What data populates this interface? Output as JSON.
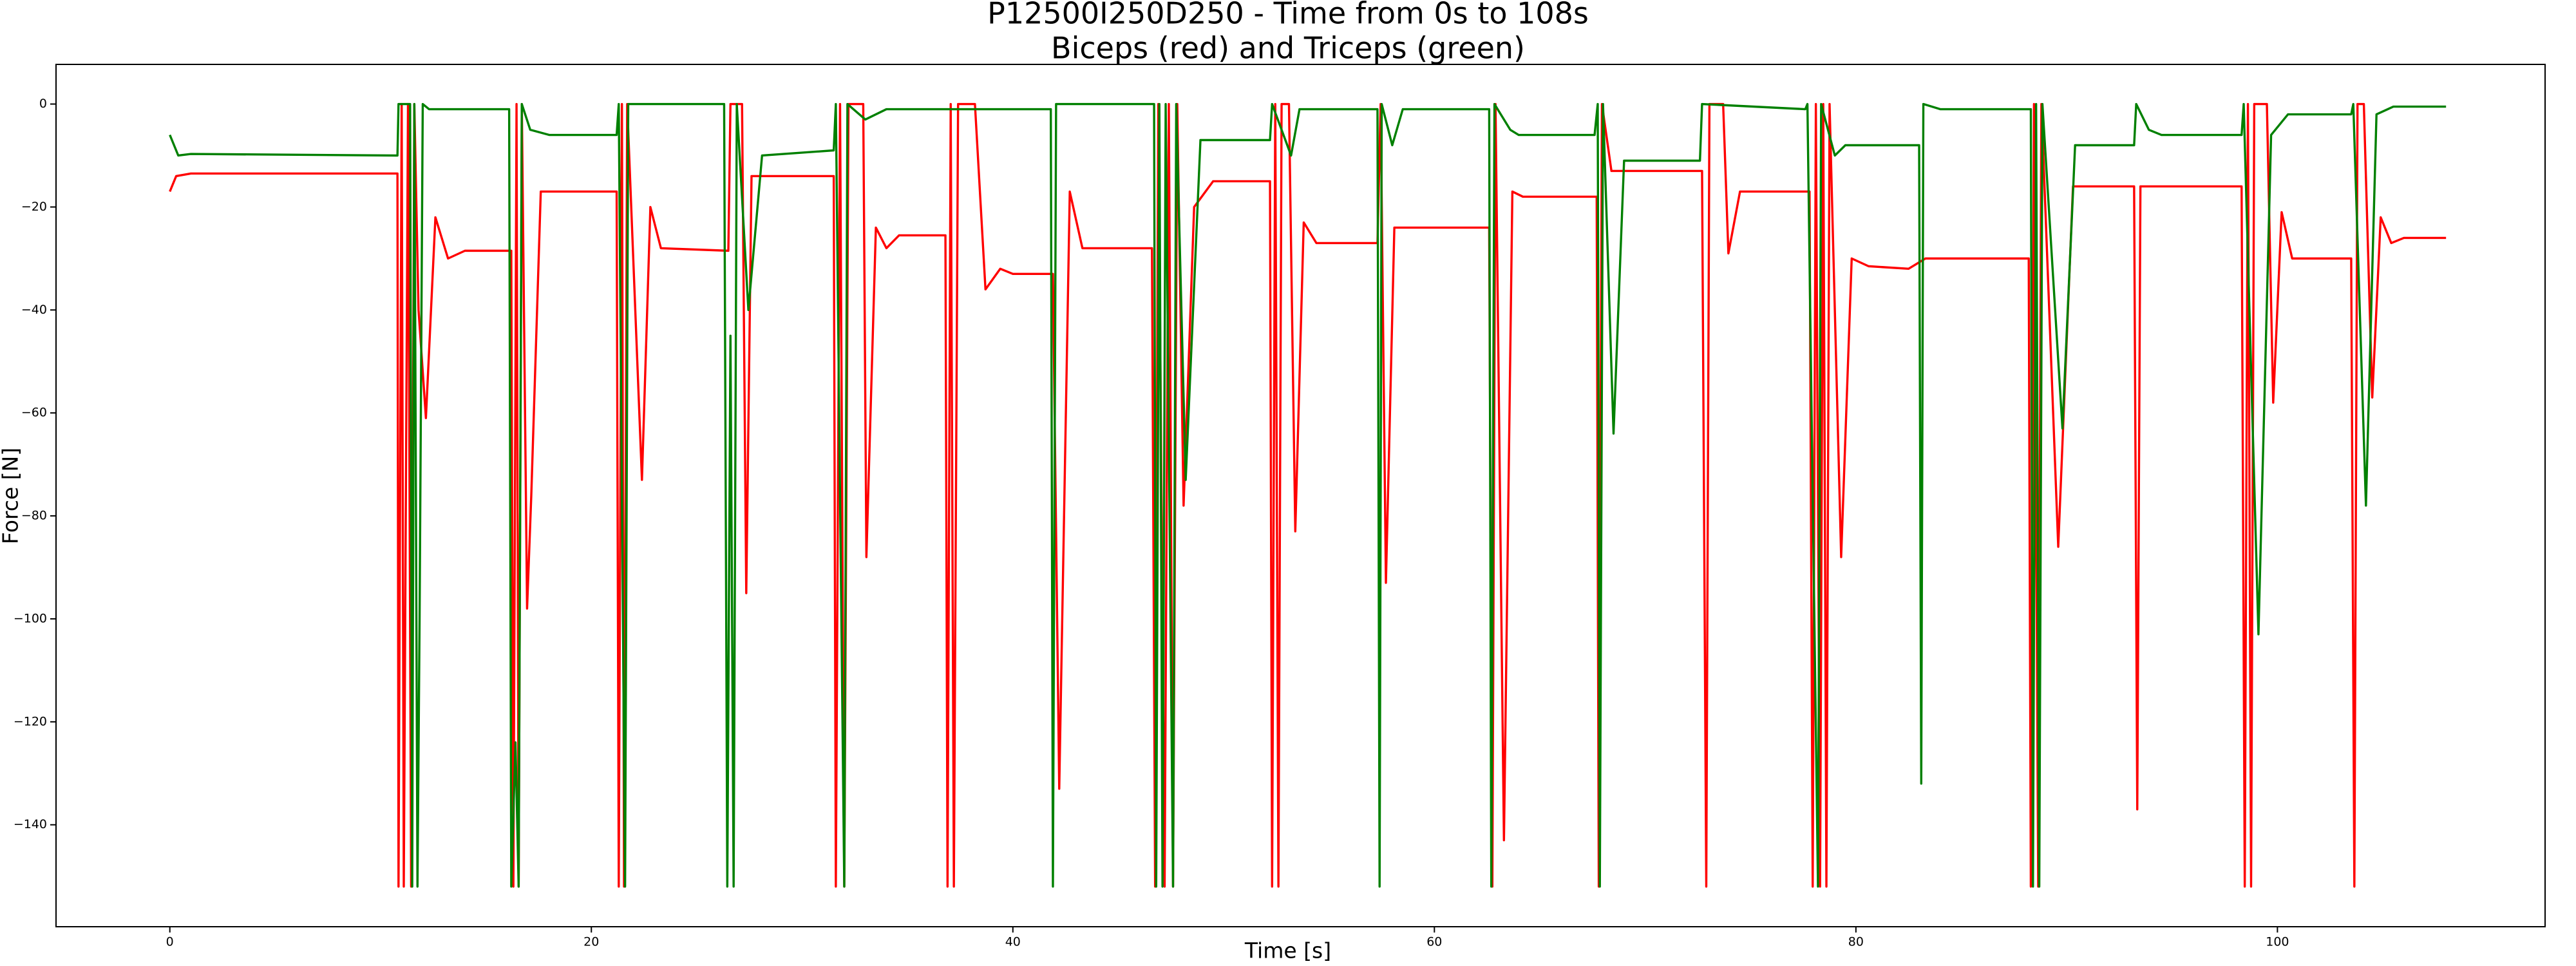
{
  "chart_data": {
    "type": "line",
    "title": "P12500I250D250 - Time from 0s to 108s",
    "subtitle": "Biceps (red) and Triceps (green)",
    "x_label": "Time [s]",
    "y_label": "Force [N]",
    "xlim": [
      -5.4,
      112.7
    ],
    "ylim": [
      -159.8,
      7.7
    ],
    "xticks": [
      0,
      20,
      40,
      60,
      80,
      100
    ],
    "yticks": [
      {
        "value": 0,
        "label": "0"
      },
      {
        "value": -20,
        "label": "−20"
      },
      {
        "value": -40,
        "label": "−40"
      },
      {
        "value": -60,
        "label": "−60"
      },
      {
        "value": -80,
        "label": "−80"
      },
      {
        "value": -100,
        "label": "−100"
      },
      {
        "value": -120,
        "label": "−120"
      },
      {
        "value": -140,
        "label": "−140"
      }
    ],
    "grid": false,
    "series": [
      {
        "color": "#ff0000",
        "x": [
          0,
          0.3,
          1,
          10.8,
          10.85,
          11.0,
          11.1,
          11.3,
          11.45,
          11.6,
          11.8,
          12.15,
          12.6,
          13.2,
          14,
          16.2,
          16.3,
          16.45,
          16.55,
          16.7,
          16.95,
          17.15,
          17.6,
          21.2,
          21.3,
          21.45,
          21.55,
          21.7,
          22.4,
          22.8,
          23.3,
          26.5,
          26.6,
          27.15,
          27.35,
          27.6,
          31.5,
          31.6,
          31.8,
          32.0,
          32.2,
          32.9,
          33.05,
          33.5,
          34,
          34.6,
          36.8,
          36.9,
          37.05,
          37.2,
          37.4,
          38.2,
          38.7,
          39.4,
          40,
          41.9,
          42.2,
          42.7,
          43.3,
          46.6,
          46.75,
          46.9,
          47.2,
          47.4,
          47.6,
          47.8,
          48.1,
          48.6,
          49.5,
          52.2,
          52.3,
          52.45,
          52.6,
          52.75,
          53.1,
          53.4,
          53.8,
          54.4,
          57.3,
          57.45,
          57.7,
          58.1,
          62.6,
          62.75,
          62.9,
          63.3,
          63.7,
          64.2,
          67.7,
          67.8,
          67.95,
          68.4,
          72.7,
          72.9,
          73.05,
          73.7,
          73.95,
          74.5,
          77.8,
          77.95,
          78.1,
          78.3,
          78.45,
          78.6,
          78.75,
          79.3,
          79.8,
          80.6,
          82.5,
          83.3,
          88.2,
          88.3,
          88.45,
          88.65,
          88.8,
          89.6,
          90.3,
          93.2,
          93.35,
          93.5,
          98.3,
          98.45,
          98.6,
          98.75,
          98.9,
          99.5,
          99.8,
          100.2,
          100.7,
          103.5,
          103.65,
          103.8,
          104.1,
          104.5,
          104.9,
          105.4,
          106,
          108
        ],
        "values": [
          -17,
          -14,
          -13.5,
          -13.5,
          -152,
          0,
          -152,
          0,
          -152,
          0,
          -40,
          -61,
          -22,
          -30,
          -28.5,
          -28.5,
          -152,
          0,
          -152,
          0,
          -98,
          -76,
          -17,
          -17,
          -152,
          0,
          -152,
          0,
          -73,
          -20,
          -28,
          -28.5,
          0,
          0,
          -95,
          -14,
          -14,
          -152,
          0,
          -152,
          0,
          0,
          -88,
          -24,
          -28,
          -25.5,
          -25.5,
          -152,
          0,
          -152,
          0,
          0,
          -36,
          -32,
          -33,
          -33,
          -133,
          -17,
          -28,
          -28,
          -152,
          0,
          -152,
          0,
          -152,
          0,
          -78,
          -20,
          -15,
          -15,
          -152,
          0,
          -152,
          0,
          0,
          -83,
          -23,
          -27,
          -27,
          0,
          -93,
          -24,
          -24,
          -152,
          0,
          -143,
          -17,
          -18,
          -18,
          -152,
          0,
          -13,
          -13,
          -152,
          0,
          0,
          -29,
          -17,
          -17,
          -152,
          0,
          -152,
          0,
          -152,
          0,
          -88,
          -30,
          -31.5,
          -32,
          -30,
          -30,
          -152,
          0,
          -152,
          0,
          -86,
          -16,
          -16,
          -137,
          -16,
          -16,
          -152,
          0,
          -152,
          0,
          0,
          -58,
          -21,
          -30,
          -30,
          -152,
          0,
          0,
          -57,
          -22,
          -27,
          -26,
          -26
        ]
      },
      {
        "color": "#008000",
        "x": [
          0,
          0.4,
          1,
          10.8,
          10.85,
          11.4,
          11.5,
          11.6,
          11.75,
          11.85,
          12.0,
          12.3,
          16.1,
          16.2,
          16.4,
          16.55,
          16.7,
          17.1,
          18,
          21.2,
          21.3,
          21.6,
          21.75,
          26.3,
          26.45,
          26.6,
          26.75,
          26.9,
          27.45,
          28.1,
          31.5,
          31.6,
          32.0,
          32.15,
          33,
          34,
          41.8,
          41.9,
          42.05,
          46.7,
          46.8,
          46.95,
          47.1,
          47.25,
          47.6,
          47.75,
          48.2,
          48.9,
          52.2,
          52.3,
          53.2,
          53.6,
          57.3,
          57.4,
          57.5,
          58,
          58.5,
          62.6,
          62.7,
          62.85,
          63.6,
          64,
          67.6,
          67.75,
          67.85,
          68.0,
          68.5,
          69,
          72.6,
          72.7,
          77.6,
          77.7,
          78.2,
          78.35,
          79,
          79.5,
          83.0,
          83.1,
          83.2,
          84,
          88.3,
          88.4,
          88.55,
          88.7,
          88.85,
          89.8,
          90.4,
          93.2,
          93.3,
          93.9,
          94.5,
          98.3,
          98.4,
          99.1,
          99.7,
          100.5,
          103.5,
          103.6,
          104.2,
          104.7,
          105.5,
          108
        ],
        "values": [
          -6,
          -10,
          -9.7,
          -10,
          0,
          0,
          -152,
          0,
          -152,
          -100,
          0,
          -1,
          -1,
          -152,
          -124,
          -152,
          0,
          -5,
          -6,
          -6,
          0,
          -152,
          0,
          0,
          -152,
          -45,
          -152,
          0,
          -40,
          -10,
          -9,
          0,
          -152,
          0,
          -3,
          -1,
          -1,
          -152,
          0,
          0,
          -152,
          0,
          -152,
          0,
          -152,
          0,
          -73,
          -7,
          -7,
          0,
          -10,
          -1,
          -1,
          -152,
          0,
          -8,
          -1,
          -1,
          -152,
          0,
          -5,
          -6,
          -6,
          0,
          -152,
          0,
          -64,
          -11,
          -11,
          0,
          -1,
          0,
          -152,
          0,
          -10,
          -8,
          -8,
          -132,
          0,
          -1,
          -1,
          -152,
          0,
          -152,
          0,
          -63,
          -8,
          -8,
          0,
          -5,
          -6,
          -6,
          0,
          -103,
          -6,
          -2,
          -2,
          0,
          -78,
          -2,
          -0.5,
          -0.5
        ]
      }
    ]
  }
}
